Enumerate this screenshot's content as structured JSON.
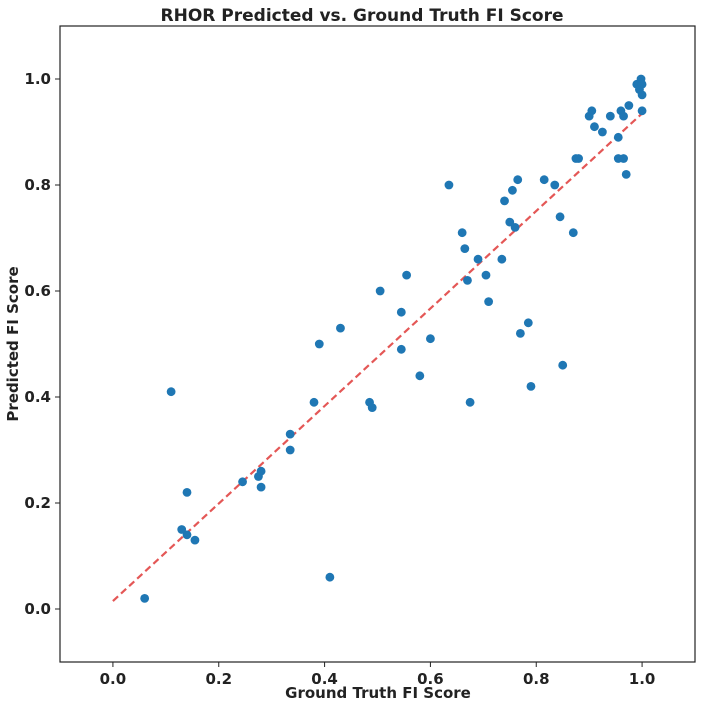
{
  "chart_data": {
    "type": "scatter",
    "title": "RHOR Predicted vs. Ground Truth FI Score",
    "xlabel": "Ground Truth FI Score",
    "ylabel": "Predicted FI Score",
    "xlim": [
      -0.1,
      1.1
    ],
    "ylim": [
      -0.1,
      1.1
    ],
    "xticks": [
      0.0,
      0.2,
      0.4,
      0.6,
      0.8,
      1.0
    ],
    "yticks": [
      0.0,
      0.2,
      0.4,
      0.6,
      0.8,
      1.0
    ],
    "tick_labels_x": [
      "0.0",
      "0.2",
      "0.4",
      "0.6",
      "0.8",
      "1.0"
    ],
    "tick_labels_y": [
      "0.0",
      "0.2",
      "0.4",
      "0.6",
      "0.8",
      "1.0"
    ],
    "grid": false,
    "point_color": "#1f77b4",
    "reference_line": {
      "x": [
        0.0,
        1.0
      ],
      "y": [
        0.015,
        0.935
      ],
      "color": "#e45756",
      "style": "dashed"
    },
    "points": [
      [
        0.06,
        0.02
      ],
      [
        0.11,
        0.41
      ],
      [
        0.13,
        0.15
      ],
      [
        0.14,
        0.14
      ],
      [
        0.14,
        0.22
      ],
      [
        0.155,
        0.13
      ],
      [
        0.245,
        0.24
      ],
      [
        0.275,
        0.25
      ],
      [
        0.28,
        0.26
      ],
      [
        0.28,
        0.23
      ],
      [
        0.335,
        0.33
      ],
      [
        0.335,
        0.3
      ],
      [
        0.38,
        0.39
      ],
      [
        0.39,
        0.5
      ],
      [
        0.41,
        0.06
      ],
      [
        0.43,
        0.53
      ],
      [
        0.485,
        0.39
      ],
      [
        0.49,
        0.38
      ],
      [
        0.505,
        0.6
      ],
      [
        0.545,
        0.49
      ],
      [
        0.545,
        0.56
      ],
      [
        0.555,
        0.63
      ],
      [
        0.58,
        0.44
      ],
      [
        0.6,
        0.51
      ],
      [
        0.635,
        0.8
      ],
      [
        0.66,
        0.71
      ],
      [
        0.665,
        0.68
      ],
      [
        0.67,
        0.62
      ],
      [
        0.675,
        0.39
      ],
      [
        0.69,
        0.66
      ],
      [
        0.705,
        0.63
      ],
      [
        0.71,
        0.58
      ],
      [
        0.735,
        0.66
      ],
      [
        0.74,
        0.77
      ],
      [
        0.75,
        0.73
      ],
      [
        0.755,
        0.79
      ],
      [
        0.76,
        0.72
      ],
      [
        0.765,
        0.81
      ],
      [
        0.77,
        0.52
      ],
      [
        0.785,
        0.54
      ],
      [
        0.79,
        0.42
      ],
      [
        0.815,
        0.81
      ],
      [
        0.835,
        0.8
      ],
      [
        0.845,
        0.74
      ],
      [
        0.85,
        0.46
      ],
      [
        0.87,
        0.71
      ],
      [
        0.875,
        0.85
      ],
      [
        0.88,
        0.85
      ],
      [
        0.9,
        0.93
      ],
      [
        0.905,
        0.94
      ],
      [
        0.91,
        0.91
      ],
      [
        0.925,
        0.9
      ],
      [
        0.94,
        0.93
      ],
      [
        0.955,
        0.89
      ],
      [
        0.955,
        0.85
      ],
      [
        0.96,
        0.94
      ],
      [
        0.965,
        0.85
      ],
      [
        0.965,
        0.93
      ],
      [
        0.97,
        0.82
      ],
      [
        0.975,
        0.95
      ],
      [
        0.99,
        0.99
      ],
      [
        0.995,
        0.98
      ],
      [
        0.998,
        1.0
      ],
      [
        1.0,
        0.97
      ],
      [
        1.0,
        0.94
      ],
      [
        1.0,
        0.99
      ]
    ]
  }
}
